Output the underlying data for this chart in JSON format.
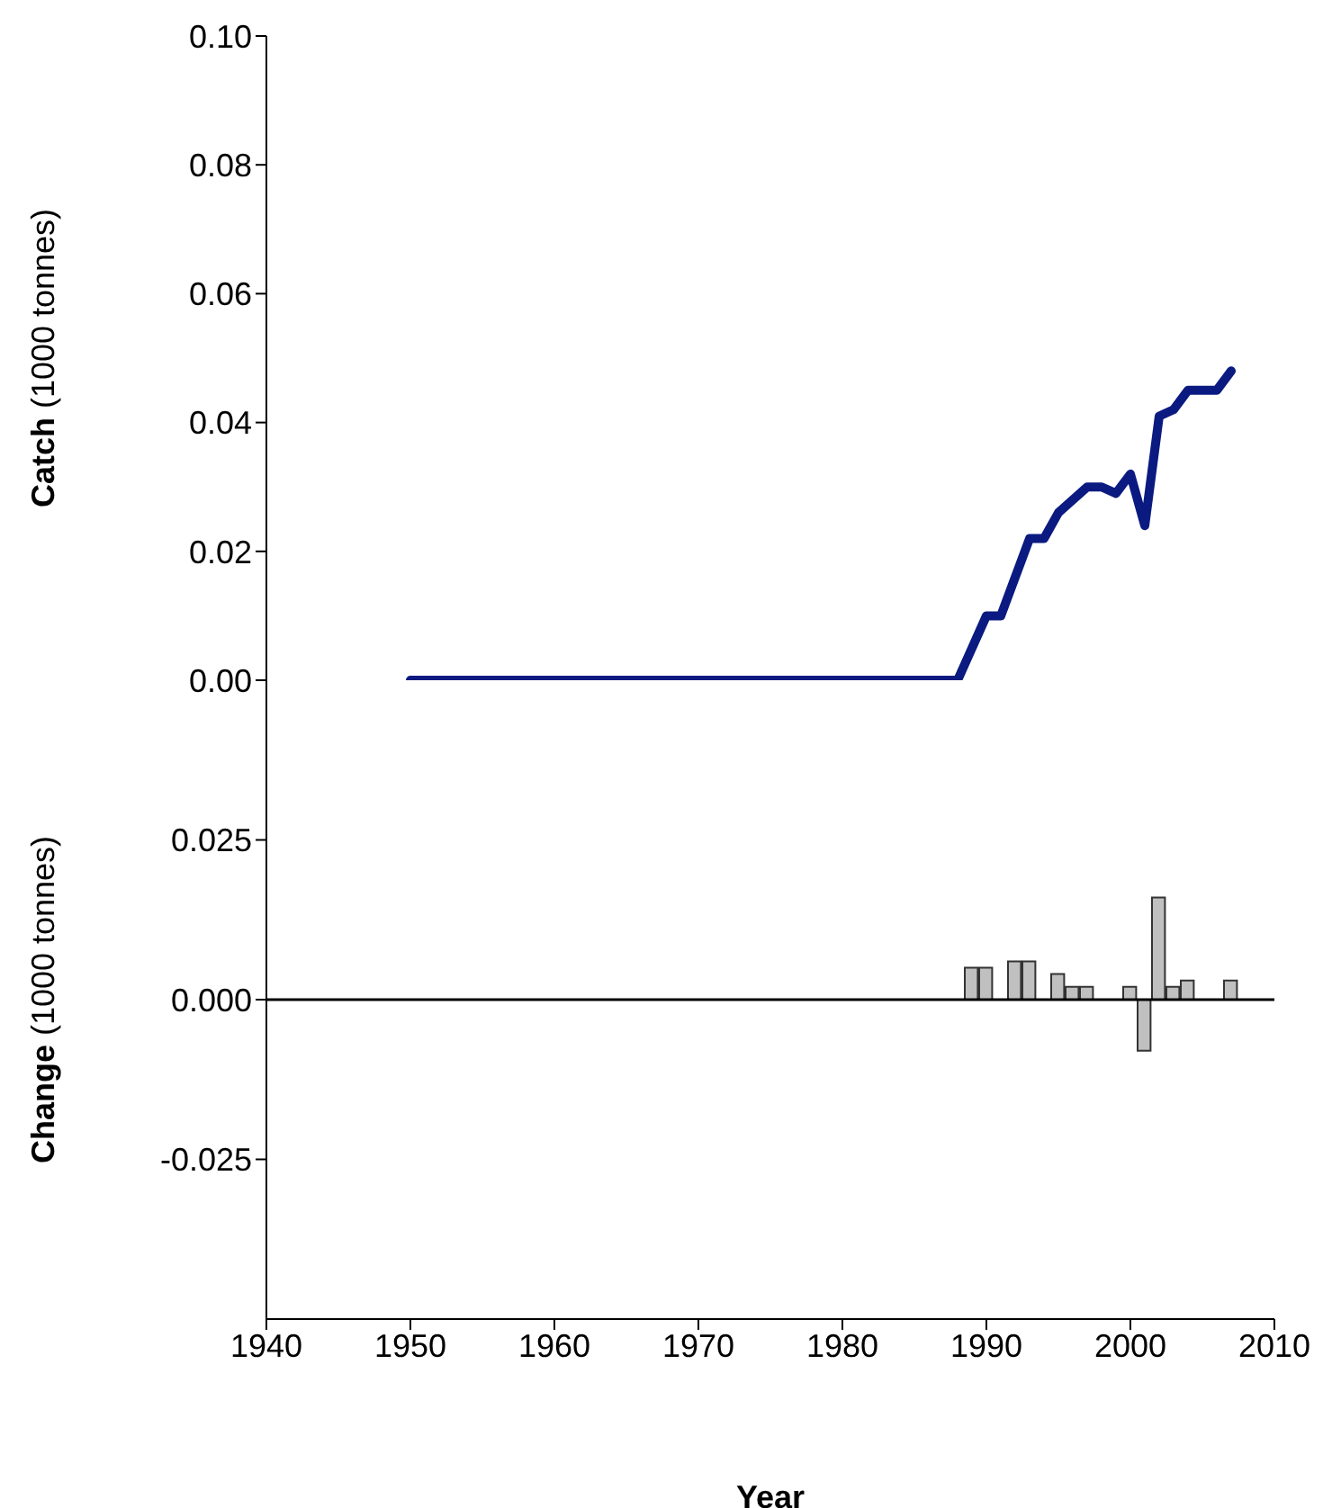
{
  "chart_data": [
    {
      "type": "line",
      "ylabel": "Catch (1000 tonnes)",
      "xlim": [
        1940,
        2010
      ],
      "ylim": [
        0,
        0.1
      ],
      "yticks": [
        {
          "value": 0,
          "label": "0.00"
        },
        {
          "value": 0.02,
          "label": "0.02"
        },
        {
          "value": 0.04,
          "label": "0.04"
        },
        {
          "value": 0.06,
          "label": "0.06"
        },
        {
          "value": 0.08,
          "label": "0.08"
        },
        {
          "value": 0.1,
          "label": "0.10"
        }
      ],
      "tick_labels": "y",
      "marker": "none",
      "line_style": "solid",
      "x": [
        1950,
        1987,
        1988,
        1989,
        1990,
        1991,
        1992,
        1993,
        1994,
        1995,
        1996,
        1997,
        1998,
        1999,
        2000,
        2001,
        2002,
        2003,
        2004,
        2005,
        2006,
        2007
      ],
      "series": [
        {
          "color": "#0a1a80",
          "values": [
            0,
            0,
            0,
            0.005,
            0.01,
            0.01,
            0.016,
            0.022,
            0.022,
            0.026,
            0.028,
            0.03,
            0.03,
            0.029,
            0.032,
            0.024,
            0.041,
            0.042,
            0.045,
            0.045,
            0.045,
            0.048
          ]
        }
      ]
    },
    {
      "type": "bar",
      "ylabel": "Change (1000 tonnes)",
      "xlabel": "Year",
      "xlim": [
        1940,
        2010
      ],
      "xticks": [
        1940,
        1950,
        1960,
        1970,
        1980,
        1990,
        2000,
        2010
      ],
      "ylim": [
        -0.05,
        0.05
      ],
      "yticks": [
        {
          "value": -0.025,
          "label": "-0.025"
        },
        {
          "value": 0,
          "label": "0.000"
        },
        {
          "value": 0.025,
          "label": "0.025"
        }
      ],
      "ref_lines": [
        {
          "axis": "y",
          "value": 0,
          "color": "#000000"
        }
      ],
      "x": [
        1989,
        1990,
        1992,
        1993,
        1995,
        1996,
        1997,
        2000,
        2001,
        2002,
        2003,
        2004,
        2007
      ],
      "series": [
        {
          "color": "#c0c0c0",
          "values": [
            0.005,
            0.005,
            0.006,
            0.006,
            0.004,
            0.002,
            0.002,
            0.002,
            -0.008,
            0.016,
            0.002,
            0.003,
            0.003
          ]
        }
      ]
    }
  ]
}
